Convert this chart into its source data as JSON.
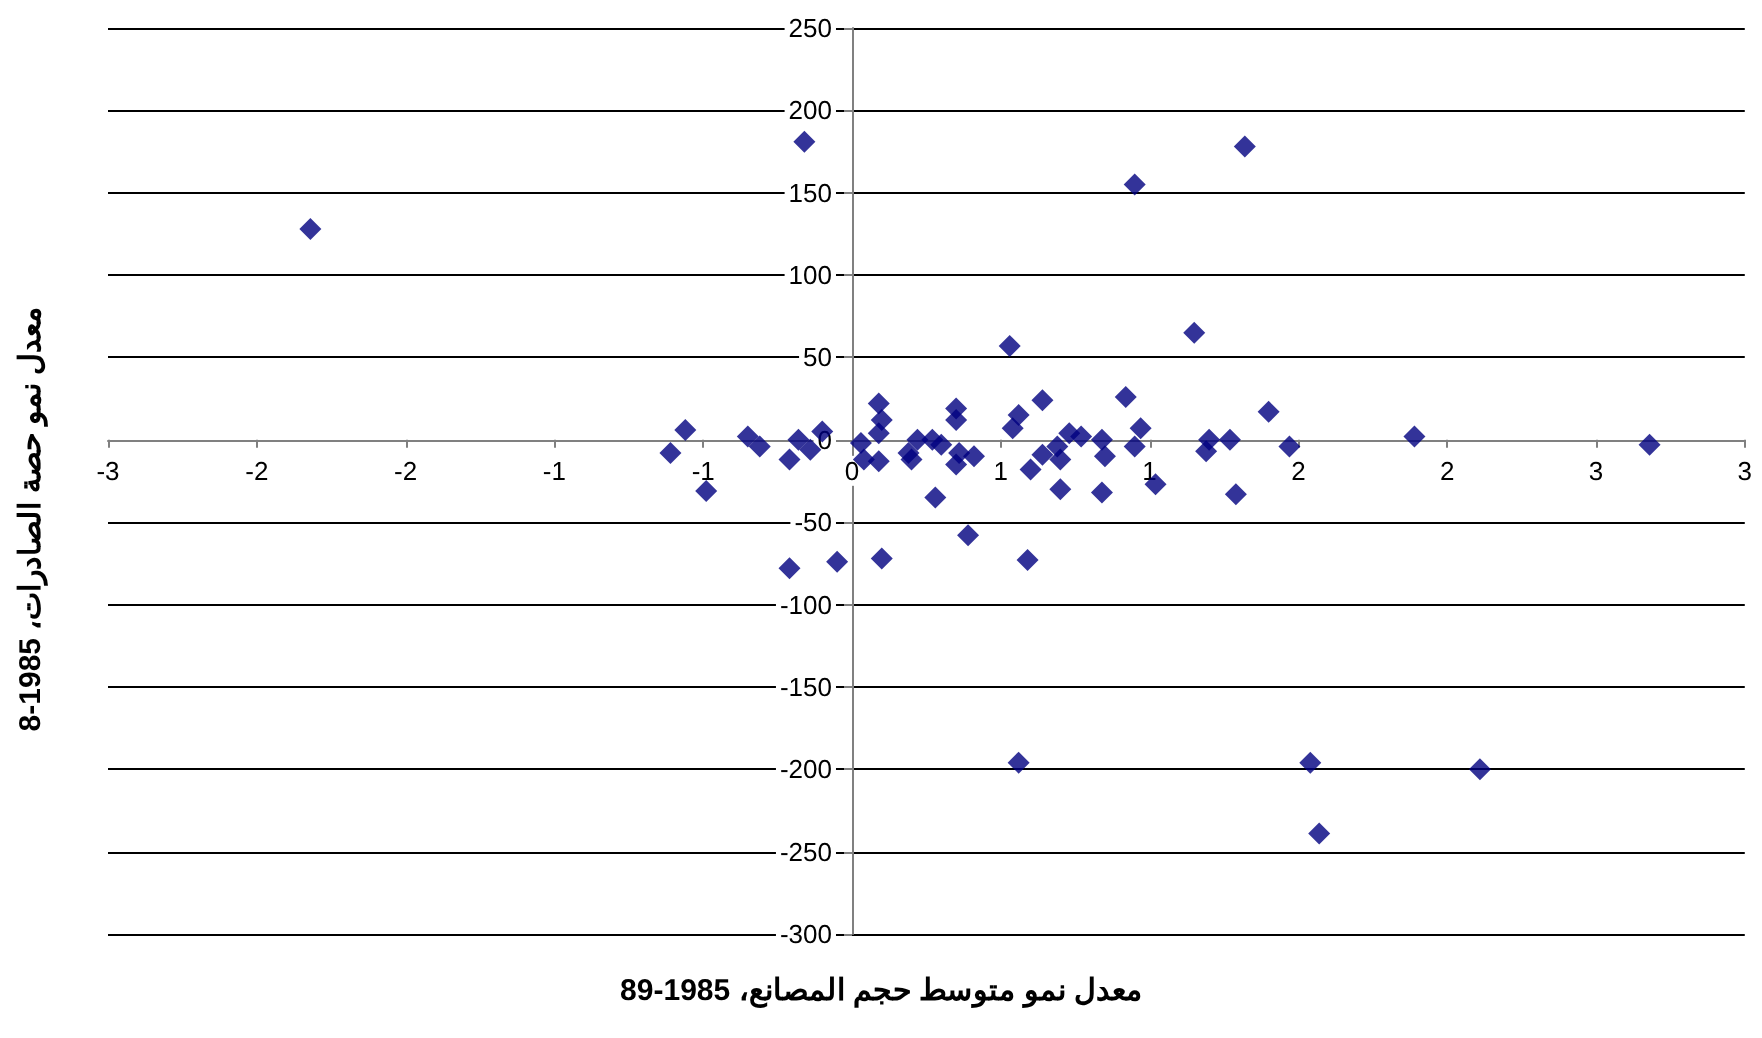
{
  "chart_data": {
    "type": "scatter",
    "xlabel": "معدل نمو متوسط حجم المصانع، 1985-89",
    "ylabel": "معدل نمو حصة الصادرات، 1985-8",
    "x": [
      -1.82,
      -0.16,
      -0.61,
      -0.56,
      -0.49,
      -0.35,
      -0.31,
      -0.21,
      -0.18,
      -0.14,
      -0.1,
      1.32,
      0.95,
      0.53,
      1.15,
      0.92,
      1.4,
      1.89,
      2.68,
      1.47,
      1.27,
      1.2,
      1.19,
      0.97,
      0.95,
      0.64,
      0.56,
      0.54,
      0.35,
      0.35,
      0.09,
      0.1,
      0.09,
      0.03,
      0.04,
      0.09,
      0.19,
      0.2,
      0.22,
      0.27,
      0.3,
      0.36,
      0.35,
      0.41,
      0.28,
      0.6,
      0.64,
      0.7,
      0.69,
      0.73,
      0.77,
      0.7,
      0.84,
      0.85,
      0.84,
      1.02,
      1.29,
      -0.21,
      -0.05,
      0.1,
      0.39,
      0.59,
      0.56,
      1.54,
      1.57,
      2.11
    ],
    "values": [
      128,
      181,
      -8,
      6,
      -31,
      2,
      -4,
      -12,
      0,
      -6,
      5,
      178,
      155,
      57,
      65,
      26,
      17,
      2,
      -3,
      -4,
      0,
      0,
      -7,
      7,
      -4,
      24,
      15,
      7,
      19,
      12,
      22,
      12,
      4,
      -2,
      -12,
      -13,
      -8,
      -12,
      0,
      0,
      -3,
      -8,
      -15,
      -10,
      -35,
      -18,
      -9,
      -12,
      -4,
      4,
      2,
      -30,
      0,
      -10,
      -32,
      -27,
      -33,
      -78,
      -74,
      -72,
      -58,
      -73,
      -196,
      -196,
      -239,
      -200
    ],
    "color": "#000080",
    "marker": "diamond",
    "grid": "y",
    "xlim": [
      -2.5,
      3
    ],
    "xticks": [
      {
        "value": -2.5,
        "label": "-3"
      },
      {
        "value": -2,
        "label": "-2"
      },
      {
        "value": -1.5,
        "label": "-2"
      },
      {
        "value": -1,
        "label": "-1"
      },
      {
        "value": -0.5,
        "label": "-1"
      },
      {
        "value": 0,
        "label": "0"
      },
      {
        "value": 0.5,
        "label": "1"
      },
      {
        "value": 1,
        "label": "1"
      },
      {
        "value": 1.5,
        "label": "2"
      },
      {
        "value": 2,
        "label": "2"
      },
      {
        "value": 2.5,
        "label": "3"
      },
      {
        "value": 3,
        "label": "3"
      }
    ],
    "ylim": [
      -300,
      250
    ],
    "yticks": [
      -300,
      -250,
      -200,
      -150,
      -100,
      -50,
      0,
      50,
      100,
      150,
      200,
      250
    ]
  }
}
